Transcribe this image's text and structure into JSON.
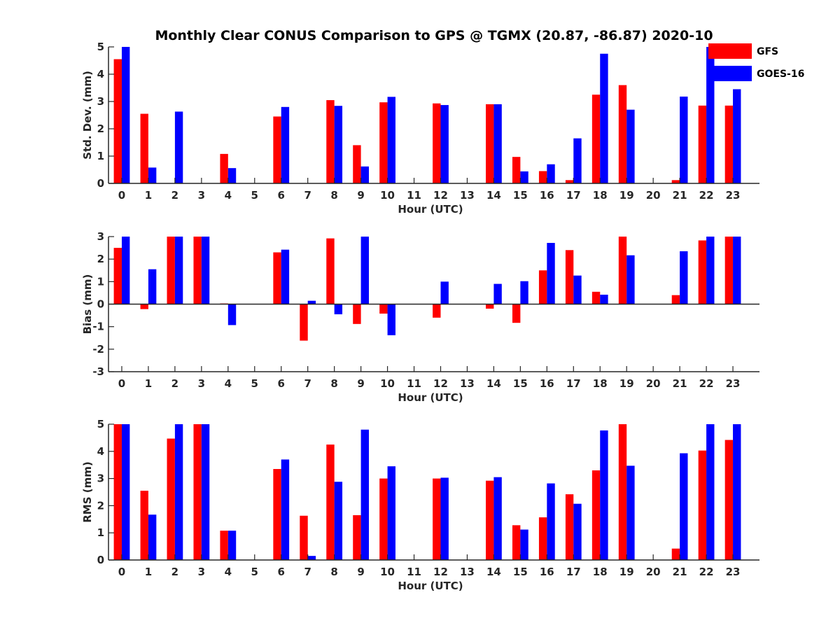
{
  "chart_data": {
    "title": "Monthly Clear CONUS Comparison to GPS @ TGMX (20.87, -86.87) 2020-10",
    "legend": {
      "placement": "top-right",
      "entries": [
        {
          "name": "GFS",
          "color": "#ff0000"
        },
        {
          "name": "GOES-16",
          "color": "#0000ff"
        }
      ]
    },
    "panels": [
      {
        "id": "stddev",
        "type": "bar",
        "xlabel": "Hour (UTC)",
        "ylabel": "Std. Dev. (mm)",
        "ylim": [
          0,
          5
        ],
        "yticks": [
          0,
          1,
          2,
          3,
          4,
          5
        ],
        "categories": [
          "0",
          "1",
          "2",
          "3",
          "4",
          "5",
          "6",
          "7",
          "8",
          "9",
          "10",
          "11",
          "12",
          "13",
          "14",
          "15",
          "16",
          "17",
          "18",
          "19",
          "20",
          "21",
          "22",
          "23"
        ],
        "series": [
          {
            "name": "GFS",
            "color": "#ff0000",
            "values": [
              4.55,
              2.55,
              0,
              0,
              1.08,
              0,
              2.45,
              0,
              3.05,
              1.4,
              2.97,
              0,
              2.93,
              0,
              2.9,
              0.97,
              0.45,
              0.12,
              3.25,
              3.6,
              0,
              0.12,
              2.85,
              2.85
            ]
          },
          {
            "name": "GOES-16",
            "color": "#0000ff",
            "values": [
              5.0,
              0.58,
              2.63,
              0,
              0.56,
              0,
              2.8,
              0,
              2.84,
              0.62,
              3.17,
              0,
              2.87,
              0,
              2.9,
              0.44,
              0.7,
              1.65,
              4.75,
              2.7,
              0,
              3.18,
              5.0,
              3.45
            ]
          }
        ]
      },
      {
        "id": "bias",
        "type": "bar",
        "xlabel": "Hour (UTC)",
        "ylabel": "Bias (mm)",
        "ylim": [
          -3,
          3
        ],
        "yticks": [
          -3,
          -2,
          -1,
          0,
          1,
          2,
          3
        ],
        "categories": [
          "0",
          "1",
          "2",
          "3",
          "4",
          "5",
          "6",
          "7",
          "8",
          "9",
          "10",
          "11",
          "12",
          "13",
          "14",
          "15",
          "16",
          "17",
          "18",
          "19",
          "20",
          "21",
          "22",
          "23"
        ],
        "series": [
          {
            "name": "GFS",
            "color": "#ff0000",
            "values": [
              2.5,
              -0.22,
              3.0,
              3.0,
              0.03,
              0,
              2.3,
              -1.62,
              2.92,
              -0.88,
              -0.42,
              0,
              -0.6,
              0,
              -0.2,
              -0.83,
              1.5,
              2.4,
              0.55,
              3.0,
              0,
              0.4,
              2.83,
              3.0
            ]
          },
          {
            "name": "GOES-16",
            "color": "#0000ff",
            "values": [
              3.0,
              1.55,
              3.0,
              3.0,
              -0.93,
              0,
              2.42,
              0.15,
              -0.45,
              3.0,
              -1.38,
              0,
              1.0,
              0,
              0.9,
              1.02,
              2.72,
              1.27,
              0.42,
              2.17,
              0,
              2.35,
              3.0,
              3.0
            ]
          }
        ]
      },
      {
        "id": "rms",
        "type": "bar",
        "xlabel": "Hour (UTC)",
        "ylabel": "RMS (mm)",
        "ylim": [
          0,
          5
        ],
        "yticks": [
          0,
          1,
          2,
          3,
          4,
          5
        ],
        "categories": [
          "0",
          "1",
          "2",
          "3",
          "4",
          "5",
          "6",
          "7",
          "8",
          "9",
          "10",
          "11",
          "12",
          "13",
          "14",
          "15",
          "16",
          "17",
          "18",
          "19",
          "20",
          "21",
          "22",
          "23"
        ],
        "series": [
          {
            "name": "GFS",
            "color": "#ff0000",
            "values": [
              5.0,
              2.55,
              4.47,
              5.0,
              1.08,
              0,
              3.35,
              1.63,
              4.25,
              1.65,
              3.0,
              0,
              3.0,
              0,
              2.92,
              1.28,
              1.57,
              2.42,
              3.3,
              5.0,
              0,
              0.42,
              4.03,
              4.42
            ]
          },
          {
            "name": "GOES-16",
            "color": "#0000ff",
            "values": [
              5.0,
              1.67,
              5.0,
              5.0,
              1.08,
              0,
              3.7,
              0.15,
              2.88,
              4.8,
              3.45,
              0,
              3.03,
              0,
              3.05,
              1.12,
              2.82,
              2.07,
              4.77,
              3.47,
              0,
              3.93,
              5.0,
              5.0
            ]
          }
        ]
      }
    ]
  }
}
